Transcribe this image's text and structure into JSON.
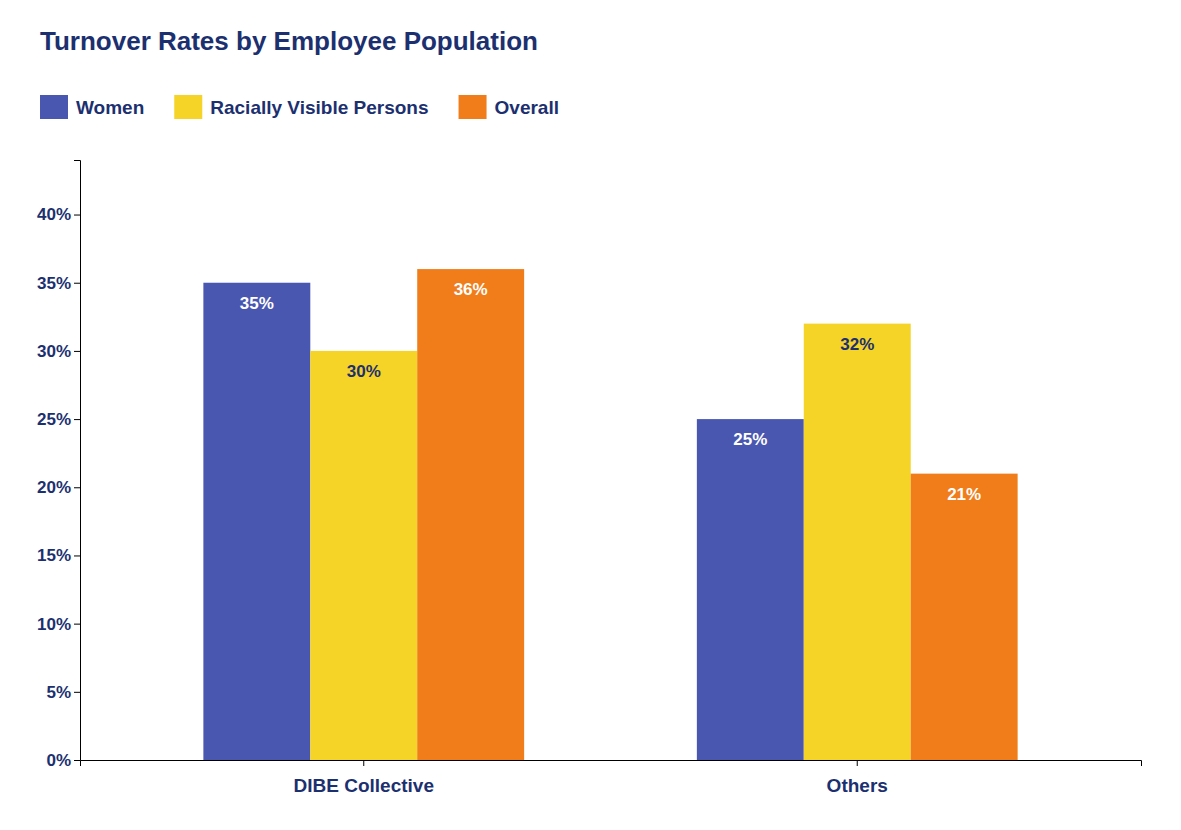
{
  "chart_data": {
    "type": "bar",
    "title": "Turnover Rates by Employee Population",
    "categories": [
      "DIBE Collective",
      "Others"
    ],
    "series": [
      {
        "name": "Women",
        "color": "#4a57b0",
        "values": [
          35,
          25
        ],
        "value_labels": [
          "35%",
          "25%"
        ]
      },
      {
        "name": "Racially Visible Persons",
        "color": "#f5d327",
        "values": [
          30,
          32
        ],
        "value_labels": [
          "30%",
          "32%"
        ]
      },
      {
        "name": "Overall",
        "color": "#f07d1a",
        "values": [
          36,
          21
        ],
        "value_labels": [
          "36%",
          "21%"
        ]
      }
    ],
    "ylim": [
      0,
      44
    ],
    "yticks": [
      {
        "value": 0,
        "label": "0%"
      },
      {
        "value": 5,
        "label": "5%"
      },
      {
        "value": 10,
        "label": "10%"
      },
      {
        "value": 15,
        "label": "15%"
      },
      {
        "value": 20,
        "label": "20%"
      },
      {
        "value": 25,
        "label": "25%"
      },
      {
        "value": 30,
        "label": "30%"
      },
      {
        "value": 35,
        "label": "35%"
      },
      {
        "value": 40,
        "label": "40%"
      }
    ],
    "grid": false,
    "legend": "upper left",
    "data_labels": true
  }
}
